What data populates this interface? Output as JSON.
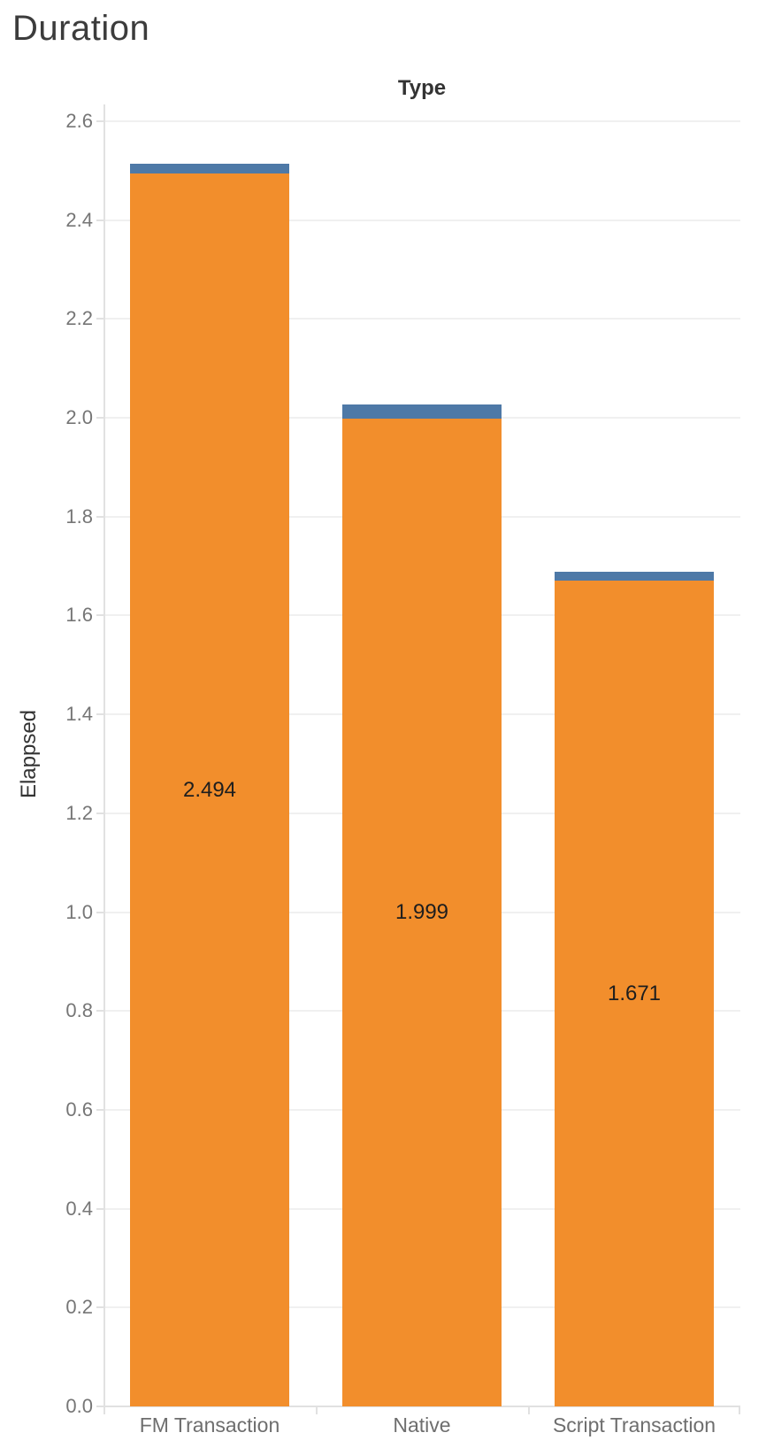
{
  "title": "Duration",
  "column_header": "Type",
  "y_axis": {
    "label": "Elappsed",
    "tick_values": [
      0.0,
      0.2,
      0.4,
      0.6,
      0.8,
      1.0,
      1.2,
      1.4,
      1.6,
      1.8,
      2.0,
      2.2,
      2.4,
      2.6
    ]
  },
  "chart_data": {
    "type": "bar",
    "stacked": true,
    "title": "Duration",
    "column_header": "Type",
    "xlabel": "",
    "ylabel": "Elappsed",
    "categories": [
      "FM Transaction",
      "Native",
      "Script Transaction"
    ],
    "series": [
      {
        "name": "elapsed-main",
        "color": "#f28e2c",
        "values": [
          2.494,
          1.999,
          1.671
        ],
        "data_labels": [
          "2.494",
          "1.999",
          "1.671"
        ]
      },
      {
        "name": "top-cap-unlabeled",
        "color": "#4e79a7",
        "values": [
          0.019,
          0.029,
          0.018
        ],
        "estimated": true,
        "data_labels": [
          "",
          "",
          ""
        ]
      }
    ],
    "ylim": [
      0,
      2.634
    ],
    "yticks": [
      0.0,
      0.2,
      0.4,
      0.6,
      0.8,
      1.0,
      1.2,
      1.4,
      1.6,
      1.8,
      2.0,
      2.2,
      2.4,
      2.6
    ],
    "grid": true,
    "legend": false
  },
  "colors": {
    "bar_orange": "#f28e2c",
    "bar_blue": "#4e79a7",
    "gridline": "#f0f0f0",
    "axis_line": "#e1e1e1",
    "tick_label": "#767676",
    "category_label": "#6e6e6e",
    "title_text": "#3c3c3c",
    "header_text": "#333333",
    "value_label": "#1e1e1e",
    "background": "#ffffff"
  }
}
